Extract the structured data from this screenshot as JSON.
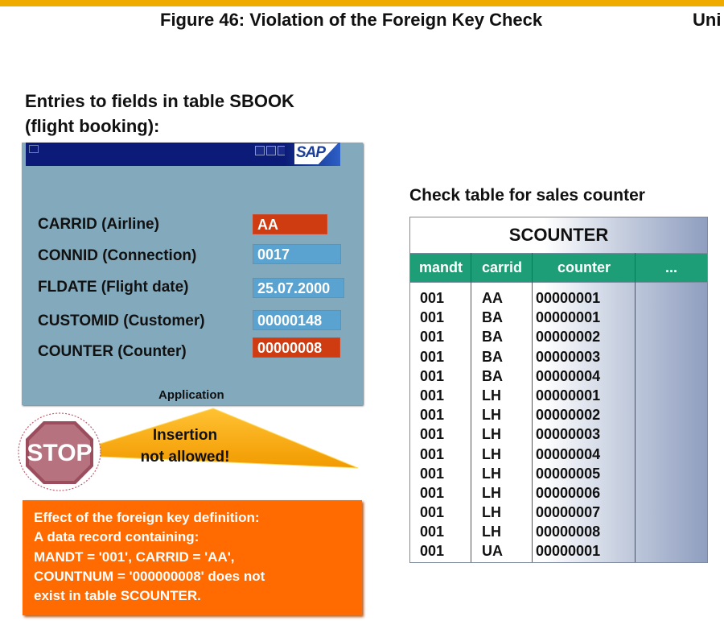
{
  "header": {
    "figure_title": "Figure 46: Violation of the Foreign Key Check",
    "unit_label": "Uni"
  },
  "entries": {
    "title_line1": "Entries to fields in table SBOOK",
    "title_line2": "(flight booking):"
  },
  "sap_window": {
    "logo": "SAP",
    "fields": [
      {
        "label": "CARRID (Airline)",
        "value": "AA",
        "status": "error"
      },
      {
        "label": "CONNID (Connection)",
        "value": "0017",
        "status": "ok"
      },
      {
        "label": "FLDATE (Flight date)",
        "value": "25.07.2000",
        "status": "ok"
      },
      {
        "label": "CUSTOMID (Customer)",
        "value": "00000148",
        "status": "ok"
      },
      {
        "label": "COUNTER (Counter)",
        "value": "00000008",
        "status": "error"
      }
    ],
    "app_label": "Application"
  },
  "stop": {
    "sign_text": "STOP",
    "callout_line1": "Insertion",
    "callout_line2": "not allowed!"
  },
  "note": {
    "lines": [
      "Effect of the foreign key definition:",
      "A data record containing:",
      "MANDT = '001', CARRID = 'AA',",
      "COUNTNUM = '000000008' does not",
      "exist in table SCOUNTER."
    ]
  },
  "check_table": {
    "title": "Check table for sales counter",
    "name": "SCOUNTER",
    "columns": [
      "mandt",
      "carrid",
      "counter",
      "..."
    ],
    "rows": [
      [
        "001",
        "AA",
        "00000001"
      ],
      [
        "001",
        "BA",
        "00000001"
      ],
      [
        "001",
        "BA",
        "00000002"
      ],
      [
        "001",
        "BA",
        "00000003"
      ],
      [
        "001",
        "BA",
        "00000004"
      ],
      [
        "001",
        "LH",
        "00000001"
      ],
      [
        "001",
        "LH",
        "00000002"
      ],
      [
        "001",
        "LH",
        "00000003"
      ],
      [
        "001",
        "LH",
        "00000004"
      ],
      [
        "001",
        "LH",
        "00000005"
      ],
      [
        "001",
        "LH",
        "00000006"
      ],
      [
        "001",
        "LH",
        "00000007"
      ],
      [
        "001",
        "LH",
        "00000008"
      ],
      [
        "001",
        "UA",
        "00000001"
      ]
    ]
  },
  "colors": {
    "accent_bar": "#f0ab00",
    "sap_panel": "#82a9bc",
    "error_field": "#cf3c12",
    "ok_field": "#5aa2cf",
    "note_bg": "#ff6b00",
    "table_header": "#1e9e76",
    "stop_sign": "#b6727f"
  }
}
